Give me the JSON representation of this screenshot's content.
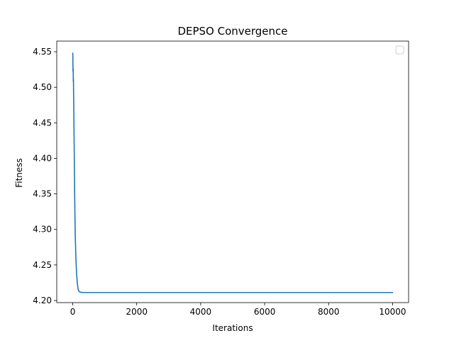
{
  "chart_data": {
    "type": "line",
    "title": "DEPSO Convergence",
    "xlabel": "Iterations",
    "ylabel": "Fitness",
    "xlim": [
      -500,
      10500
    ],
    "ylim": [
      4.197,
      4.565
    ],
    "xticks": [
      0,
      2000,
      4000,
      6000,
      8000,
      10000
    ],
    "xtick_labels": [
      "0",
      "2000",
      "4000",
      "6000",
      "8000",
      "10000"
    ],
    "yticks": [
      4.2,
      4.25,
      4.3,
      4.35,
      4.4,
      4.45,
      4.5,
      4.55
    ],
    "ytick_labels": [
      "4.20",
      "4.25",
      "4.30",
      "4.35",
      "4.40",
      "4.45",
      "4.50",
      "4.55"
    ],
    "grid": false,
    "legend": {
      "placement": "top-right",
      "entries": []
    },
    "series": [
      {
        "color": "#1f77b4",
        "x": [
          0,
          3,
          6,
          10,
          14,
          18,
          22,
          26,
          30,
          36,
          42,
          50,
          60,
          70,
          80,
          100,
          120,
          140,
          160,
          180,
          200,
          250,
          300,
          400,
          600,
          1000,
          2000,
          4000,
          6000,
          8000,
          10000
        ],
        "y": [
          4.548,
          4.545,
          4.53,
          4.522,
          4.526,
          4.508,
          4.512,
          4.495,
          4.48,
          4.455,
          4.43,
          4.395,
          4.35,
          4.315,
          4.29,
          4.258,
          4.238,
          4.226,
          4.218,
          4.214,
          4.2125,
          4.2115,
          4.2112,
          4.2112,
          4.2112,
          4.2112,
          4.2112,
          4.2112,
          4.2112,
          4.2112,
          4.2112
        ]
      }
    ]
  }
}
